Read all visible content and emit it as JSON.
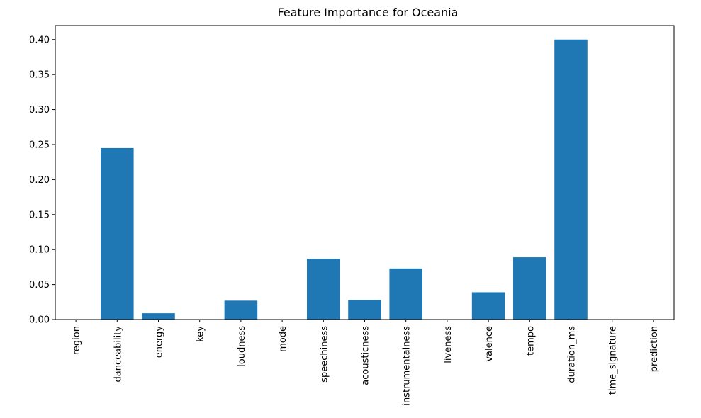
{
  "chart_data": {
    "type": "bar",
    "title": "Feature Importance for Oceania",
    "xlabel": "",
    "ylabel": "",
    "categories": [
      "region",
      "danceability",
      "energy",
      "key",
      "loudness",
      "mode",
      "speechiness",
      "acousticness",
      "instrumentalness",
      "liveness",
      "valence",
      "tempo",
      "duration_ms",
      "time_signature",
      "prediction"
    ],
    "values": [
      0.0,
      0.245,
      0.009,
      0.0,
      0.027,
      0.0,
      0.087,
      0.028,
      0.073,
      0.0,
      0.039,
      0.089,
      0.4,
      0.0,
      0.0
    ],
    "ylim": [
      0,
      0.42
    ],
    "yticks": [
      0.0,
      0.05,
      0.1,
      0.15,
      0.2,
      0.25,
      0.3,
      0.35,
      0.4
    ],
    "ytick_labels": [
      "0.00",
      "0.05",
      "0.10",
      "0.15",
      "0.20",
      "0.25",
      "0.30",
      "0.35",
      "0.40"
    ],
    "bar_color": "#1f77b4",
    "grid": false,
    "legend": false
  }
}
